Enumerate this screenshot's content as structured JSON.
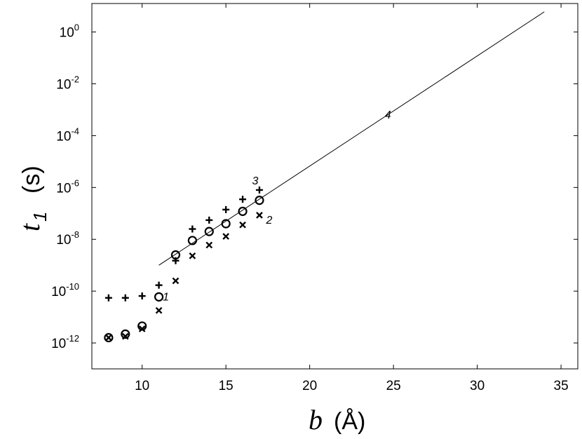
{
  "chart_data": {
    "type": "scatter",
    "title": "",
    "xlabel": {
      "symbol": "b",
      "unit": "(Å)"
    },
    "ylabel": {
      "symbol": "t",
      "subscript": "1",
      "unit": "(s)"
    },
    "xlim": [
      7,
      36
    ],
    "ylim_log10": [
      -13,
      1.1
    ],
    "y_scale": "log",
    "grid": false,
    "legend": "none",
    "x_ticks": [
      10,
      15,
      20,
      25,
      30,
      35
    ],
    "y_ticks": [
      {
        "base": "10",
        "exp": "0",
        "log10": 0
      },
      {
        "base": "10",
        "exp": "-2",
        "log10": -2
      },
      {
        "base": "10",
        "exp": "-4",
        "log10": -4
      },
      {
        "base": "10",
        "exp": "-6",
        "log10": -6
      },
      {
        "base": "10",
        "exp": "-8",
        "log10": -8
      },
      {
        "base": "10",
        "exp": "-10",
        "log10": -10
      },
      {
        "base": "10",
        "exp": "-12",
        "log10": -12
      }
    ],
    "series": [
      {
        "label": "1",
        "marker": "circle",
        "x": [
          8,
          9,
          10,
          11,
          12,
          13,
          14,
          15,
          16,
          17
        ],
        "y": [
          1.6e-12,
          2.2e-12,
          4.5e-12,
          6e-11,
          2.5e-09,
          9e-09,
          2e-08,
          4e-08,
          1.2e-07,
          3.2e-07
        ]
      },
      {
        "label": "2",
        "marker": "x",
        "x": [
          8,
          9,
          10,
          11,
          12,
          13,
          14,
          15,
          16,
          17
        ],
        "y": [
          1.6e-12,
          1.8e-12,
          3.5e-12,
          1.8e-11,
          2.5e-10,
          2.3e-09,
          6e-09,
          1.3e-08,
          3.6e-08,
          8.5e-08
        ]
      },
      {
        "label": "3",
        "marker": "plus",
        "x": [
          8,
          9,
          10,
          11,
          12,
          13,
          14,
          15,
          16,
          17
        ],
        "y": [
          5.5e-11,
          5.5e-11,
          6.5e-11,
          1.7e-10,
          1.5e-09,
          2.5e-08,
          5.5e-08,
          1.4e-07,
          3.5e-07,
          8e-07
        ]
      },
      {
        "label": "4",
        "type": "line",
        "x": [
          11,
          34
        ],
        "y": [
          1e-09,
          6.0
        ]
      }
    ],
    "annotations": [
      {
        "text": "1",
        "series": 0,
        "point_index": 3
      },
      {
        "text": "2",
        "series": 1,
        "point_index": 9
      },
      {
        "text": "3",
        "series": 2,
        "point_index": 9
      },
      {
        "text": "4",
        "series": 3,
        "at_x": 24
      }
    ]
  }
}
